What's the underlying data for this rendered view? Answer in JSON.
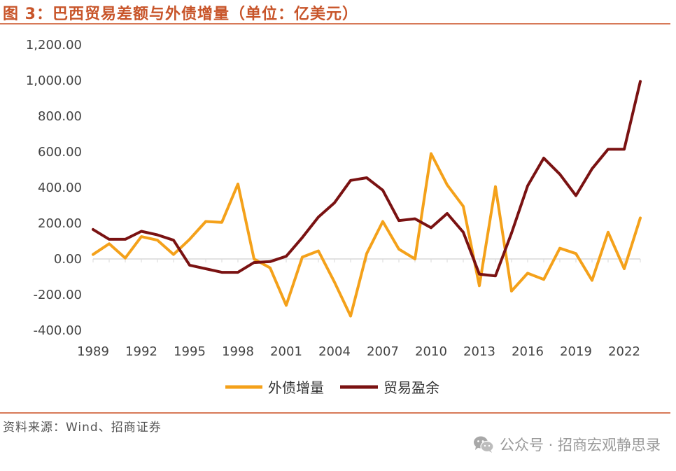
{
  "title": "图 3：巴西贸易差额与外债增量（单位：亿美元）",
  "source": "资料来源：Wind、招商证券",
  "watermark": {
    "icon": "wechat-icon",
    "text": "公众号 · 招商宏观静思录"
  },
  "colors": {
    "title": "#c8552a",
    "rule": "#d77a58",
    "debt": "#f4a11a",
    "trade": "#7a1212"
  },
  "chart_data": {
    "type": "line",
    "title": "巴西贸易差额与外债增量",
    "xlabel": "",
    "ylabel": "",
    "ylim": [
      -400,
      1200
    ],
    "y_ticks": [
      "1,200.00",
      "1,000.00",
      "800.00",
      "600.00",
      "400.00",
      "200.00",
      "0.00",
      "-200.00",
      "-400.00"
    ],
    "y_tick_values": [
      1200,
      1000,
      800,
      600,
      400,
      200,
      0,
      -200,
      -400
    ],
    "x_tick_labels": [
      "1989",
      "1992",
      "1995",
      "1998",
      "2001",
      "2004",
      "2007",
      "2010",
      "2013",
      "2016",
      "2019",
      "2022"
    ],
    "x": [
      1989,
      1990,
      1991,
      1992,
      1993,
      1994,
      1995,
      1996,
      1997,
      1998,
      1999,
      2000,
      2001,
      2002,
      2003,
      2004,
      2005,
      2006,
      2007,
      2008,
      2009,
      2010,
      2011,
      2012,
      2013,
      2014,
      2015,
      2016,
      2017,
      2018,
      2019,
      2020,
      2021,
      2022,
      2023
    ],
    "legend_position": "bottom",
    "series": [
      {
        "name": "外债增量",
        "color": "#f4a11a",
        "values": [
          25,
          85,
          5,
          125,
          105,
          25,
          110,
          210,
          205,
          420,
          0,
          -50,
          -260,
          10,
          45,
          -130,
          -320,
          30,
          210,
          55,
          0,
          590,
          415,
          295,
          -150,
          405,
          -180,
          -80,
          -115,
          60,
          30,
          -120,
          150,
          -55,
          230
        ]
      },
      {
        "name": "贸易盈余",
        "color": "#7a1212",
        "values": [
          165,
          110,
          110,
          155,
          135,
          105,
          -35,
          -55,
          -75,
          -75,
          -20,
          -15,
          15,
          120,
          235,
          315,
          440,
          455,
          385,
          215,
          225,
          175,
          255,
          150,
          -85,
          -95,
          145,
          410,
          565,
          475,
          355,
          505,
          615,
          615,
          995
        ]
      }
    ]
  }
}
